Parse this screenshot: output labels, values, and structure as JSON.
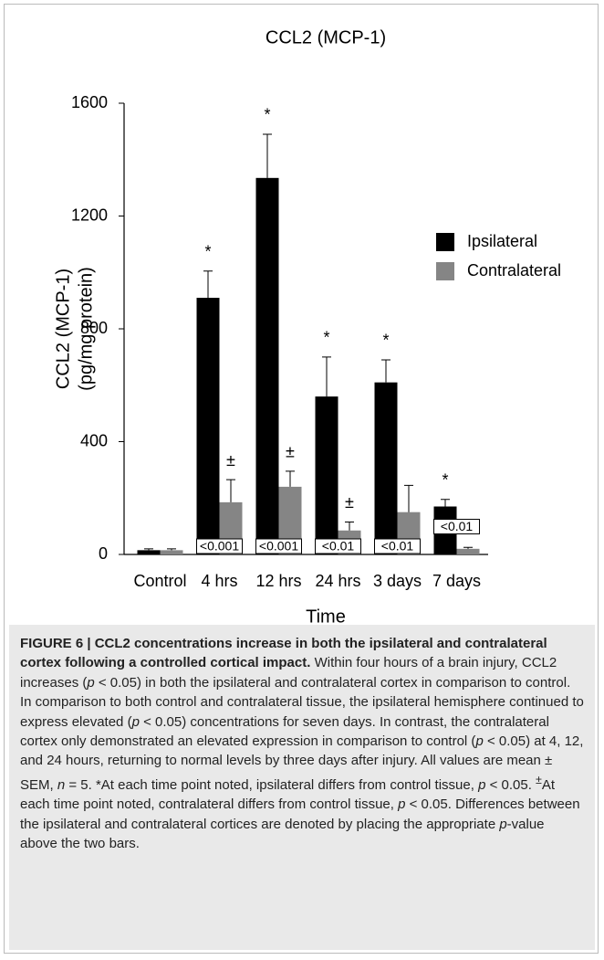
{
  "chart_data": {
    "type": "bar",
    "title": "CCL2 (MCP-1)",
    "xlabel": "Time",
    "ylabel": [
      "CCL2 (MCP-1)",
      "(pg/mg protein)"
    ],
    "categories": [
      "Control",
      "4 hrs",
      "12 hrs",
      "24 hrs",
      "3 days",
      "7 days"
    ],
    "series": [
      {
        "name": "Ipsilateral",
        "color": "#000000",
        "values": [
          15,
          910,
          1335,
          560,
          610,
          170
        ],
        "errors": [
          5,
          95,
          155,
          140,
          80,
          25
        ],
        "annotations": [
          null,
          "*",
          "*",
          "*",
          "*",
          "*"
        ]
      },
      {
        "name": "Contralateral",
        "color": "#858585",
        "values": [
          15,
          185,
          240,
          85,
          150,
          20
        ],
        "errors": [
          5,
          80,
          55,
          30,
          95,
          5
        ],
        "annotations": [
          null,
          "±",
          "±",
          "±",
          null,
          null
        ]
      }
    ],
    "p_values": [
      null,
      "<0.001",
      "<0.001",
      "<0.01",
      "<0.01",
      "<0.01"
    ],
    "ylim": [
      0,
      1600
    ],
    "yticks": [
      0,
      400,
      800,
      1200,
      1600
    ],
    "legend": "right"
  },
  "caption": {
    "title": "FIGURE 6 | CCL2 concentrations increase in both the ipsilateral and contralateral cortex following a controlled cortical impact.",
    "runs": [
      {
        "text": " Within four hours of a brain injury, CCL2 increases ("
      },
      {
        "text": "p",
        "style": "italic"
      },
      {
        "text": " < 0.05) in both the ipsilateral and contralateral cortex in comparison to control. In comparison to both control and contralateral tissue, the ipsilateral hemisphere continued to express elevated ("
      },
      {
        "text": "p",
        "style": "italic"
      },
      {
        "text": " < 0.05) concentrations for seven days. In contrast, the contralateral cortex only demonstrated an elevated expression in comparison to control ("
      },
      {
        "text": "p",
        "style": "italic"
      },
      {
        "text": " < 0.05) at 4, 12, and 24 hours, returning to normal levels by three days after injury. All values are mean ± SEM, "
      },
      {
        "text": "n",
        "style": "italic"
      },
      {
        "text": " = 5. *At each time point noted, ipsilateral differs from control tissue, "
      },
      {
        "text": "p",
        "style": "italic"
      },
      {
        "text": " < 0.05. "
      },
      {
        "text": "±",
        "style": "sup"
      },
      {
        "text": "At each time point noted, contralateral differs from control tissue, "
      },
      {
        "text": "p",
        "style": "italic"
      },
      {
        "text": " < 0.05. Differences between the ipsilateral and contralateral cortices are denoted by placing the appropriate "
      },
      {
        "text": "p",
        "style": "italic"
      },
      {
        "text": "-value above the two bars."
      }
    ]
  }
}
